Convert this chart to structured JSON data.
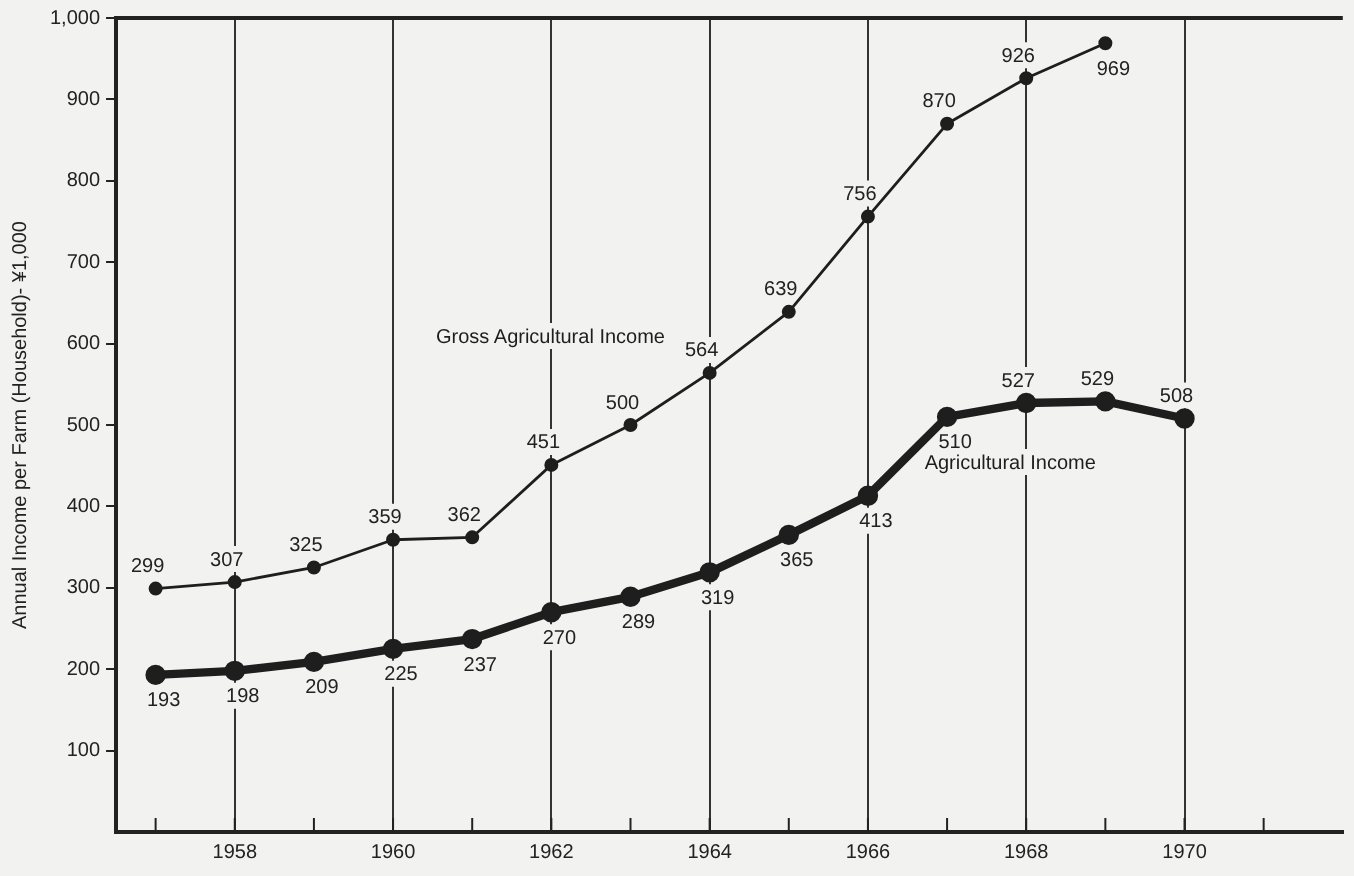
{
  "chart_data": {
    "type": "line",
    "ylabel": "Annual Income per Farm (Household)- ¥1,000",
    "x": [
      1957,
      1958,
      1959,
      1960,
      1961,
      1962,
      1963,
      1964,
      1965,
      1966,
      1967,
      1968,
      1969,
      1970
    ],
    "series": [
      {
        "name": "Gross Agricultural Income",
        "color": "#1e1e1e",
        "x": [
          1957,
          1958,
          1959,
          1960,
          1961,
          1962,
          1963,
          1964,
          1965,
          1966,
          1967,
          1968,
          1969
        ],
        "values": [
          299,
          307,
          325,
          359,
          362,
          451,
          500,
          564,
          639,
          756,
          870,
          926,
          969
        ]
      },
      {
        "name": "Agricultural Income",
        "color": "#1e1e1e",
        "values": [
          193,
          198,
          209,
          225,
          237,
          270,
          289,
          319,
          365,
          413,
          510,
          527,
          529,
          508
        ]
      }
    ],
    "xlim": [
      1956.5,
      1972
    ],
    "xticks": [
      {
        "value": 1957,
        "label": null
      },
      1958,
      {
        "value": 1959,
        "label": null
      },
      1960,
      {
        "value": 1961,
        "label": null
      },
      1962,
      {
        "value": 1963,
        "label": null
      },
      1964,
      {
        "value": 1965,
        "label": null
      },
      1966,
      {
        "value": 1967,
        "label": null
      },
      1968,
      {
        "value": 1969,
        "label": null
      },
      1970,
      {
        "value": 1971,
        "label": null
      }
    ],
    "ylim": [
      0,
      1000
    ],
    "yticks": [
      100,
      200,
      300,
      400,
      500,
      600,
      700,
      800,
      900,
      {
        "value": 1000,
        "label": "1,000"
      }
    ],
    "grid": "x",
    "marker": "circle",
    "data_labels": true
  }
}
